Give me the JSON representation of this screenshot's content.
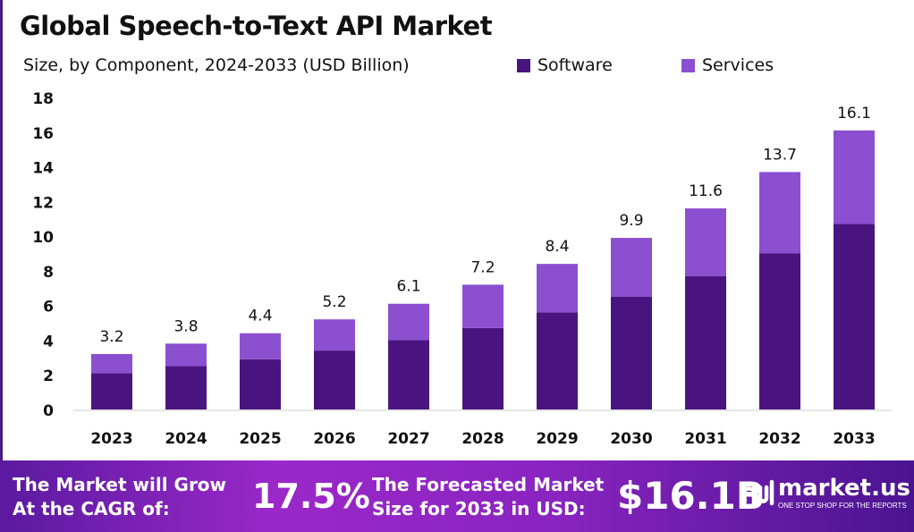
{
  "chart_data": {
    "type": "bar",
    "stacked": true,
    "title": "Global Speech-to-Text API Market",
    "subtitle": "Size, by Component, 2024-2033 (USD Billion)",
    "categories": [
      "2023",
      "2024",
      "2025",
      "2026",
      "2027",
      "2028",
      "2029",
      "2030",
      "2031",
      "2032",
      "2033"
    ],
    "series": [
      {
        "name": "Software",
        "color": "#4a1480",
        "values": [
          2.1,
          2.5,
          2.9,
          3.4,
          4.0,
          4.7,
          5.6,
          6.5,
          7.7,
          9.0,
          10.7
        ]
      },
      {
        "name": "Services",
        "color": "#8c4fd0",
        "values": [
          1.1,
          1.3,
          1.5,
          1.8,
          2.1,
          2.5,
          2.8,
          3.4,
          3.9,
          4.7,
          5.4
        ]
      }
    ],
    "totals": [
      "3.2",
      "3.8",
      "4.4",
      "5.2",
      "6.1",
      "7.2",
      "8.4",
      "9.9",
      "11.6",
      "13.7",
      "16.1"
    ],
    "yticks": [
      "0",
      "2",
      "4",
      "6",
      "8",
      "10",
      "12",
      "14",
      "16",
      "18"
    ],
    "ylim": [
      0,
      18
    ],
    "grid": false,
    "legend_position": "top-right"
  },
  "banner": {
    "cagr_label_1": "The Market will Grow",
    "cagr_label_2": "At the CAGR of:",
    "cagr_value": "17.5%",
    "forecast_label_1": "The Forecasted Market",
    "forecast_label_2": "Size for 2033 in USD:",
    "forecast_value": "$16.1B",
    "logo_text": "market.us",
    "logo_tagline": "ONE STOP SHOP FOR THE REPORTS"
  }
}
